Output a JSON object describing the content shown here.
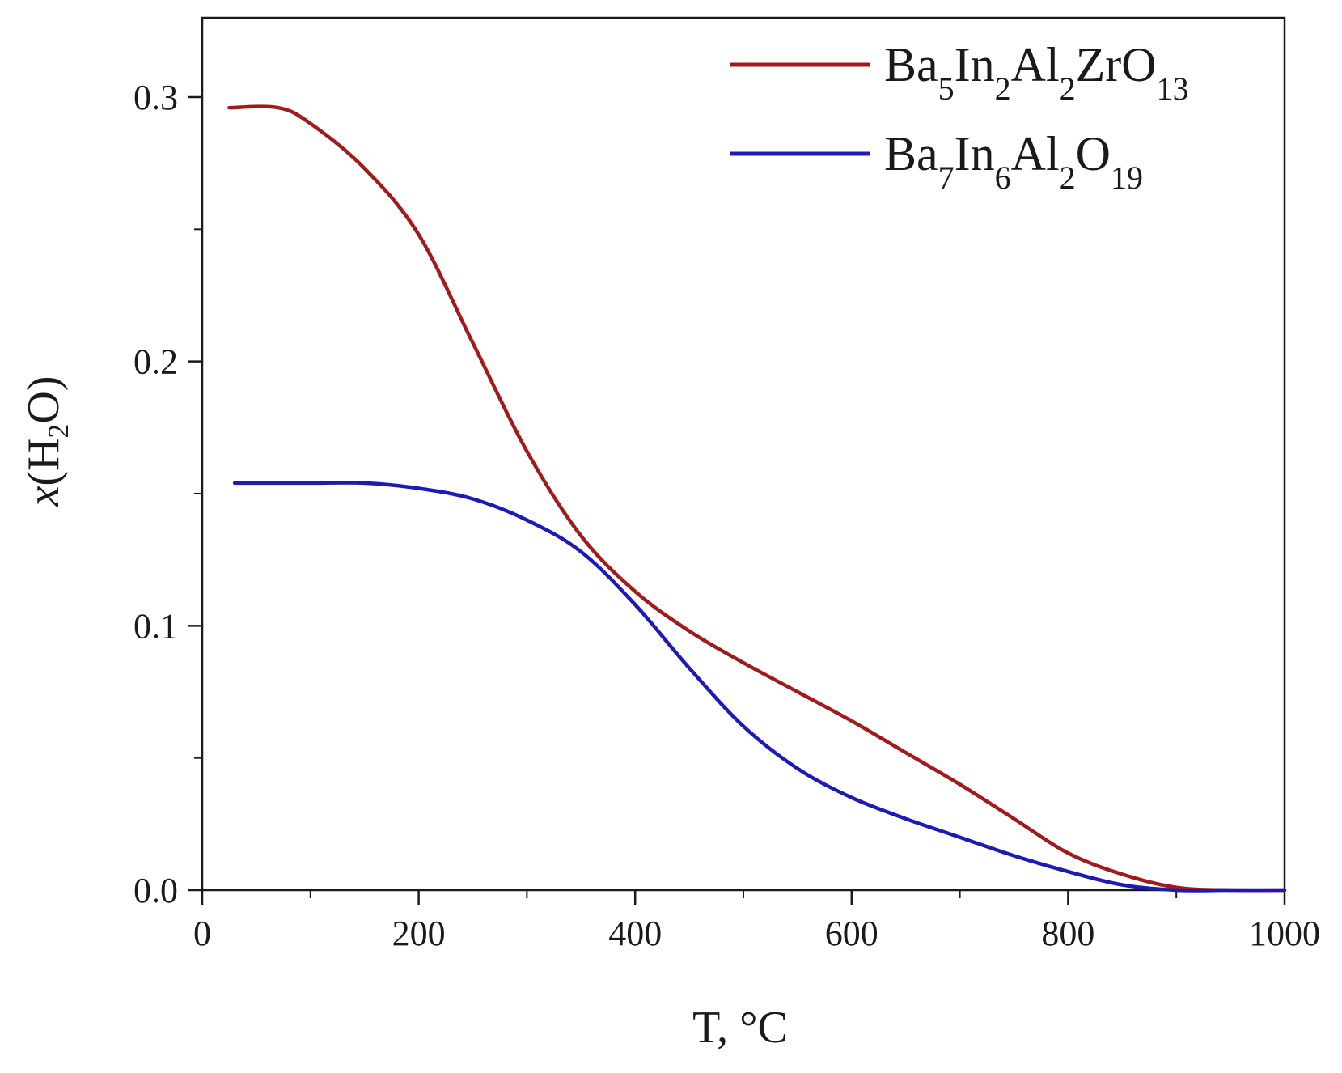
{
  "chart_data": {
    "type": "line",
    "xlabel": "T, °C",
    "ylabel_italic": "x",
    "ylabel_open": "(H",
    "ylabel_sub": "2",
    "ylabel_close": "O)",
    "xlim": [
      0,
      1000
    ],
    "ylim": [
      0,
      0.33
    ],
    "x_ticks": [
      0,
      200,
      400,
      600,
      800,
      1000
    ],
    "x_tick_labels": [
      "0",
      "200",
      "400",
      "600",
      "800",
      "1000"
    ],
    "x_minor_ticks": [
      100,
      300,
      500,
      700,
      900
    ],
    "y_ticks": [
      0,
      0.1,
      0.2,
      0.3
    ],
    "y_tick_labels": [
      "0.0",
      "0.1",
      "0.2",
      "0.3"
    ],
    "y_minor_ticks": [
      0.05,
      0.15,
      0.25
    ],
    "grid": false,
    "legend_position": "top-right",
    "series": [
      {
        "name": "Ba5In2Al2ZrO13",
        "name_parts": [
          [
            "Ba",
            "5"
          ],
          [
            "In",
            "2"
          ],
          [
            "Al",
            "2"
          ],
          [
            "ZrO",
            "13"
          ]
        ],
        "color": "#a01c1c",
        "x": [
          25,
          70,
          100,
          150,
          200,
          250,
          300,
          350,
          400,
          450,
          500,
          550,
          600,
          650,
          700,
          750,
          800,
          850,
          900,
          950,
          1000
        ],
        "y": [
          0.296,
          0.296,
          0.29,
          0.273,
          0.248,
          0.207,
          0.166,
          0.134,
          0.113,
          0.098,
          0.086,
          0.075,
          0.064,
          0.052,
          0.04,
          0.027,
          0.014,
          0.006,
          0.001,
          0.0,
          0.0
        ]
      },
      {
        "name": "Ba7In6Al2O19",
        "name_parts": [
          [
            "Ba",
            "7"
          ],
          [
            "In",
            "6"
          ],
          [
            "Al",
            "2"
          ],
          [
            "O",
            "19"
          ]
        ],
        "color": "#1c1cb4",
        "x": [
          30,
          100,
          150,
          200,
          250,
          300,
          350,
          400,
          450,
          500,
          550,
          600,
          650,
          700,
          750,
          800,
          850,
          900,
          950,
          1000
        ],
        "y": [
          0.154,
          0.154,
          0.154,
          0.152,
          0.148,
          0.14,
          0.128,
          0.108,
          0.084,
          0.062,
          0.046,
          0.035,
          0.027,
          0.02,
          0.013,
          0.007,
          0.002,
          0.0,
          0.0,
          0.0
        ]
      }
    ]
  }
}
